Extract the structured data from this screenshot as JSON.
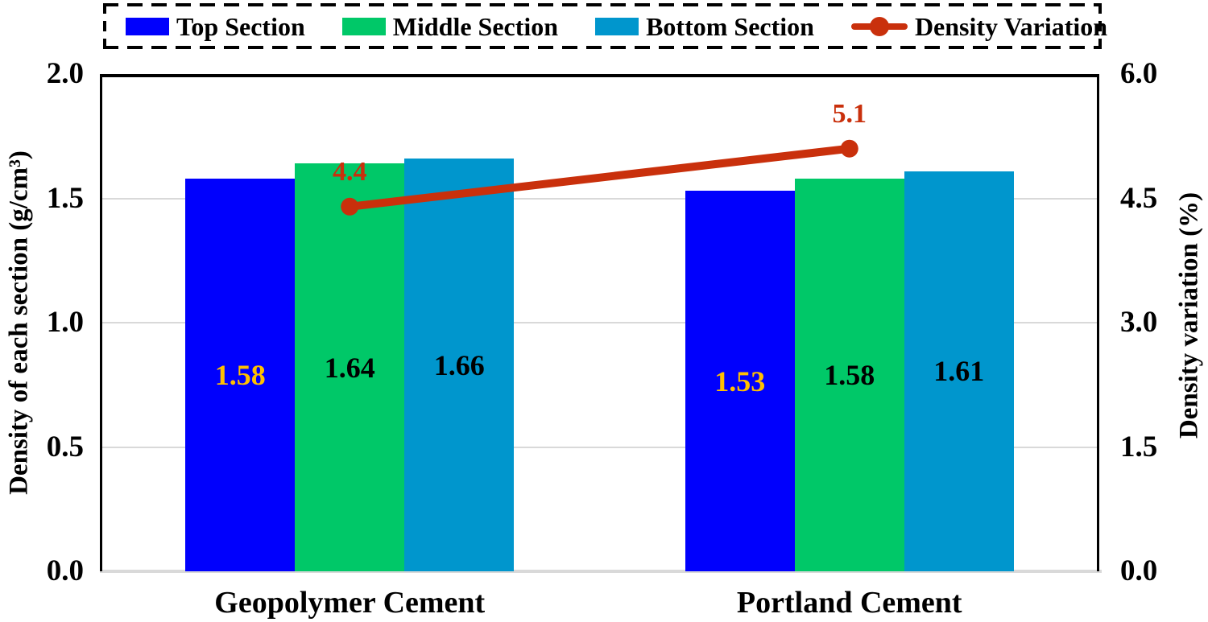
{
  "legend": {
    "items": [
      {
        "label": "Top Section",
        "marker": "square",
        "color": "#0000fd"
      },
      {
        "label": "Middle Section",
        "marker": "square",
        "color": "#00c868"
      },
      {
        "label": "Bottom Section",
        "marker": "square",
        "color": "#0096cd"
      },
      {
        "label": "Density Variation",
        "marker": "line-dot",
        "color": "#c9300c"
      }
    ]
  },
  "chart_data": {
    "type": "bar+line",
    "categories": [
      "Geopolymer Cement",
      "Portland Cement"
    ],
    "bar_series": [
      {
        "name": "Top Section",
        "color": "#0000fd",
        "label_color": "#ffc000",
        "values": [
          1.58,
          1.53
        ]
      },
      {
        "name": "Middle Section",
        "color": "#00c868",
        "label_color": "#000000",
        "values": [
          1.64,
          1.58
        ]
      },
      {
        "name": "Bottom Section",
        "color": "#0096cd",
        "label_color": "#000000",
        "values": [
          1.66,
          1.61
        ]
      }
    ],
    "line_series": {
      "name": "Density Variation",
      "color": "#c9300c",
      "axis": "right",
      "values": [
        4.4,
        5.1
      ]
    },
    "left_axis": {
      "title": "Density of each section (g/cm³)",
      "min": 0.0,
      "max": 2.0,
      "tick_labels": [
        "2.0",
        "1.5",
        "1.0",
        "0.5",
        "0.0"
      ]
    },
    "right_axis": {
      "title": "Density variation (%)",
      "min": 0.0,
      "max": 6.0,
      "tick_labels": [
        "6.0",
        "4.5",
        "3.0",
        "1.5",
        "0.0"
      ]
    },
    "gridlines": {
      "color": "#d9d9d9",
      "levels": [
        0.5,
        1.0,
        1.5
      ]
    },
    "legend_position": "top",
    "plot_background": "#ffffff"
  }
}
